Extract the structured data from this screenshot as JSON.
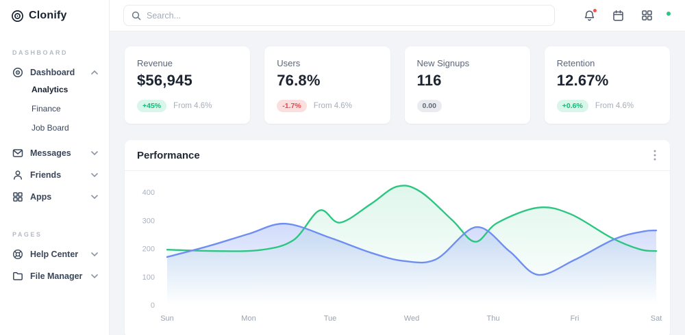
{
  "brand": {
    "name": "Clonify"
  },
  "topbar": {
    "search_placeholder": "Search..."
  },
  "sidebar": {
    "sections": [
      {
        "label": "DASHBOARD",
        "items": [
          {
            "label": "Dashboard",
            "icon": "dashboard-icon",
            "expanded": true,
            "children": [
              {
                "label": "Analytics",
                "active": true
              },
              {
                "label": "Finance",
                "active": false
              },
              {
                "label": "Job Board",
                "active": false
              }
            ]
          },
          {
            "label": "Messages",
            "icon": "messages-icon"
          },
          {
            "label": "Friends",
            "icon": "friends-icon"
          },
          {
            "label": "Apps",
            "icon": "apps-icon"
          }
        ]
      },
      {
        "label": "PAGES",
        "items": [
          {
            "label": "Help Center",
            "icon": "help-icon"
          },
          {
            "label": "File Manager",
            "icon": "folder-icon"
          }
        ]
      }
    ]
  },
  "stats": [
    {
      "title": "Revenue",
      "value": "$56,945",
      "badge": "+45%",
      "badge_type": "positive",
      "note": "From 4.6%"
    },
    {
      "title": "Users",
      "value": "76.8%",
      "badge": "-1.7%",
      "badge_type": "negative",
      "note": "From 4.6%"
    },
    {
      "title": "New Signups",
      "value": "116",
      "badge": "0.00",
      "badge_type": "neutral",
      "note": ""
    },
    {
      "title": "Retention",
      "value": "12.67%",
      "badge": "+0.6%",
      "badge_type": "positive",
      "note": "From 4.6%"
    }
  ],
  "panel": {
    "title": "Performance"
  },
  "chart_data": {
    "type": "area",
    "title": "Performance",
    "categories": [
      "Sun",
      "Mon",
      "Tue",
      "Wed",
      "Thu",
      "Fri",
      "Sat"
    ],
    "y_ticks": [
      0,
      100,
      200,
      300,
      400
    ],
    "ylim": [
      0,
      440
    ],
    "grid": false,
    "legend": "none",
    "x_unit": "day index, 0 = Sun (fractional x = position between day ticks)",
    "values_at_days": {
      "green": [
        196,
        193,
        295,
        413,
        290,
        310,
        191
      ],
      "blue": [
        170,
        252,
        238,
        155,
        272,
        160,
        264
      ]
    },
    "series": [
      {
        "name": "green",
        "color": "#2cc581",
        "fill_opacity": 0.15,
        "points": [
          [
            0,
            196
          ],
          [
            0.6,
            191
          ],
          [
            1.15,
            195
          ],
          [
            1.55,
            230
          ],
          [
            1.87,
            335
          ],
          [
            2.12,
            292
          ],
          [
            2.5,
            358
          ],
          [
            2.82,
            420
          ],
          [
            3.1,
            403
          ],
          [
            3.5,
            300
          ],
          [
            3.78,
            224
          ],
          [
            4.05,
            291
          ],
          [
            4.55,
            345
          ],
          [
            4.95,
            322
          ],
          [
            5.45,
            238
          ],
          [
            5.8,
            197
          ],
          [
            6,
            191
          ]
        ]
      },
      {
        "name": "blue",
        "color": "#6f8ef2",
        "fill_opacity": 0.32,
        "points": [
          [
            0,
            170
          ],
          [
            0.5,
            208
          ],
          [
            1,
            252
          ],
          [
            1.45,
            288
          ],
          [
            2,
            238
          ],
          [
            2.5,
            185
          ],
          [
            2.9,
            156
          ],
          [
            3.3,
            162
          ],
          [
            3.79,
            276
          ],
          [
            4.2,
            190
          ],
          [
            4.55,
            107
          ],
          [
            5,
            160
          ],
          [
            5.5,
            235
          ],
          [
            5.85,
            261
          ],
          [
            6,
            264
          ]
        ]
      }
    ]
  },
  "colors": {
    "accent_green": "#2cc581",
    "accent_blue": "#6f8ef2",
    "badge_positive_text": "#17b877",
    "badge_positive_bg": "#d8f6e9",
    "badge_negative_text": "#e5484d",
    "badge_negative_bg": "#fbdede",
    "badge_neutral_text": "#5f6b7a",
    "badge_neutral_bg": "#e9ebef",
    "notification_dot": "#f4514d",
    "online_dot": "#2ec47f"
  }
}
